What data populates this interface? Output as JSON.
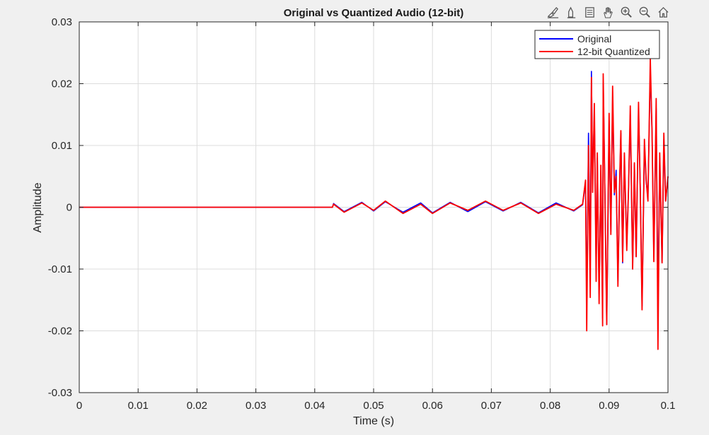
{
  "toolbar": {
    "icons": [
      "brush-icon",
      "data-tips-icon",
      "legend-toggle-icon",
      "pan-hand-icon",
      "zoom-in-icon",
      "zoom-out-icon",
      "home-icon"
    ]
  },
  "colors": {
    "original": "#0000ff",
    "quantized": "#ff0000",
    "grid": "#dcdcdc",
    "background": "#f0f0f0"
  },
  "chart_data": {
    "type": "line",
    "title": "Original vs Quantized Audio (12-bit)",
    "xlabel": "Time (s)",
    "ylabel": "Amplitude",
    "xlim": [
      0,
      0.1
    ],
    "ylim": [
      -0.03,
      0.03
    ],
    "xticks": [
      0,
      0.01,
      0.02,
      0.03,
      0.04,
      0.05,
      0.06,
      0.07,
      0.08,
      0.09,
      0.1
    ],
    "xtick_labels": [
      "0",
      "0.01",
      "0.02",
      "0.03",
      "0.04",
      "0.05",
      "0.06",
      "0.07",
      "0.08",
      "0.09",
      "0.1"
    ],
    "yticks": [
      -0.03,
      -0.02,
      -0.01,
      0,
      0.01,
      0.02,
      0.03
    ],
    "ytick_labels": [
      "-0.03",
      "-0.02",
      "-0.01",
      "0",
      "0.01",
      "0.02",
      "0.03"
    ],
    "grid": true,
    "legend_position": "top-right",
    "series": [
      {
        "name": "Original",
        "x": [
          0,
          0.043,
          0.0432,
          0.045,
          0.048,
          0.05,
          0.052,
          0.055,
          0.058,
          0.06,
          0.063,
          0.066,
          0.069,
          0.072,
          0.075,
          0.078,
          0.081,
          0.084,
          0.0855,
          0.086,
          0.0862,
          0.0865,
          0.0868,
          0.087,
          0.0872,
          0.0875,
          0.0878,
          0.088,
          0.0883,
          0.0886,
          0.0889,
          0.089,
          0.0893,
          0.0896,
          0.09,
          0.0903,
          0.0906,
          0.0909,
          0.0912,
          0.0915,
          0.0918,
          0.092,
          0.0923,
          0.0926,
          0.093,
          0.0933,
          0.0936,
          0.094,
          0.0943,
          0.0946,
          0.095,
          0.0953,
          0.0956,
          0.096,
          0.0963,
          0.0966,
          0.097,
          0.0973,
          0.0976,
          0.098,
          0.0983,
          0.0986,
          0.099,
          0.0993,
          0.0996,
          0.1
        ],
        "y": [
          0,
          0,
          0.0006,
          -0.0007,
          0.0008,
          -0.0006,
          0.0009,
          -0.0008,
          0.0007,
          -0.0009,
          0.0008,
          -0.0007,
          0.0009,
          -0.0006,
          0.0008,
          -0.0009,
          0.0007,
          -0.0006,
          0.0004,
          0.004,
          -0.016,
          0.012,
          -0.01,
          0.022,
          0.004,
          0.015,
          -0.01,
          0.008,
          -0.014,
          0.006,
          -0.018,
          0.02,
          0.002,
          -0.019,
          0.014,
          -0.004,
          0.018,
          0.002,
          0.006,
          -0.012,
          0.004,
          0.012,
          -0.009,
          0.008,
          -0.006,
          0.003,
          0.015,
          -0.01,
          0.007,
          -0.008,
          0.016,
          0.003,
          -0.016,
          0.01,
          0.004,
          0.002,
          0.022,
          0.012,
          -0.008,
          0.016,
          -0.016,
          0.008,
          -0.009,
          0.011,
          0.001,
          0.005
        ]
      },
      {
        "name": "12-bit Quantized",
        "x": [
          0,
          0.043,
          0.0432,
          0.045,
          0.048,
          0.05,
          0.052,
          0.055,
          0.058,
          0.06,
          0.063,
          0.066,
          0.069,
          0.072,
          0.075,
          0.078,
          0.081,
          0.084,
          0.0855,
          0.086,
          0.0862,
          0.0865,
          0.0868,
          0.087,
          0.0872,
          0.0875,
          0.0878,
          0.088,
          0.0883,
          0.0886,
          0.0889,
          0.089,
          0.0893,
          0.0896,
          0.09,
          0.0903,
          0.0906,
          0.0909,
          0.0912,
          0.0915,
          0.0918,
          0.092,
          0.0923,
          0.0926,
          0.093,
          0.0933,
          0.0936,
          0.094,
          0.0943,
          0.0946,
          0.095,
          0.0953,
          0.0956,
          0.096,
          0.0963,
          0.0966,
          0.097,
          0.0973,
          0.0976,
          0.098,
          0.0983,
          0.0986,
          0.099,
          0.0993,
          0.0996,
          0.1
        ],
        "y": [
          0,
          0,
          0.0005,
          -0.0008,
          0.0007,
          -0.0005,
          0.001,
          -0.001,
          0.0005,
          -0.001,
          0.0007,
          -0.0005,
          0.001,
          -0.0005,
          0.0007,
          -0.001,
          0.0005,
          -0.0005,
          0.0005,
          0.0044,
          -0.02,
          0.01,
          -0.0146,
          0.021,
          0.0024,
          0.0168,
          -0.012,
          0.0088,
          -0.0156,
          0.0068,
          -0.0192,
          0.0216,
          0.001,
          -0.019,
          0.0152,
          -0.0044,
          0.0196,
          0.0024,
          0.005,
          -0.0128,
          0.0044,
          0.0124,
          -0.0088,
          0.0088,
          -0.007,
          0.0028,
          0.0164,
          -0.01,
          0.0072,
          -0.008,
          0.017,
          0.0024,
          -0.0166,
          0.011,
          0.0044,
          0.001,
          0.024,
          0.012,
          -0.0088,
          0.0176,
          -0.023,
          0.0088,
          -0.009,
          0.012,
          0.001,
          0.005
        ]
      }
    ]
  }
}
